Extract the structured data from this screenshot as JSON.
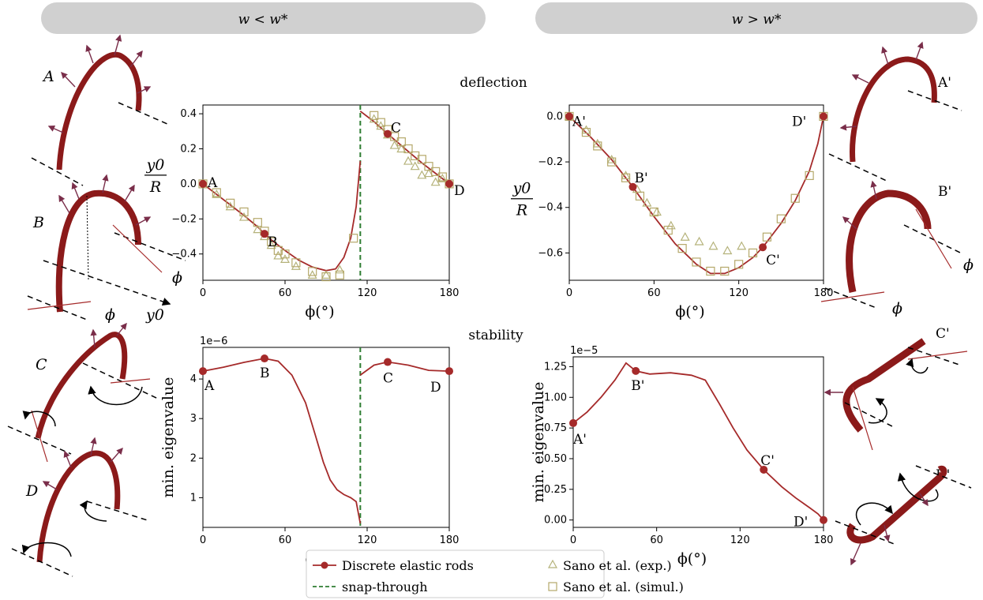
{
  "header": {
    "left_label": "w < w*",
    "right_label": "w > w*"
  },
  "section_titles": {
    "deflection": "deflection",
    "stability": "stability"
  },
  "colors": {
    "model_line": "#a52a2a",
    "snap_line": "#2e7d32",
    "exp_marker": "#b5b27a",
    "sim_marker": "#b5a86a",
    "pill": "#d0d0d0",
    "rod": "#8b1a1a"
  },
  "rod_sketches": {
    "left": [
      "A",
      "B",
      "C",
      "D"
    ],
    "right": [
      "A'",
      "B'",
      "C'",
      "D'"
    ],
    "symbols": {
      "phi": "ϕ",
      "y0": "y0"
    }
  },
  "legend": {
    "items": [
      {
        "label": "Discrete elastic rods",
        "kind": "line-dot"
      },
      {
        "label": "snap-through",
        "kind": "dash"
      },
      {
        "label": "Sano et al. (exp.)",
        "kind": "triangle"
      },
      {
        "label": "Sano et al. (simul.)",
        "kind": "square"
      }
    ]
  },
  "chart_data": [
    {
      "id": "deflection-left",
      "type": "line",
      "ylabel_num": "y0",
      "ylabel_den": "R",
      "xlabel": "ϕ(°)",
      "xlim": [
        0,
        180
      ],
      "ylim": [
        -0.55,
        0.45
      ],
      "xticks": [
        0,
        60,
        120,
        180
      ],
      "yticks": [
        0.4,
        0.2,
        0.0,
        -0.2,
        -0.4
      ],
      "yticklabels": [
        "0.4",
        "0.2",
        "0.0",
        "−0.2",
        "−0.4"
      ],
      "snap_through_x": 115,
      "series": [
        {
          "name": "Discrete elastic rods",
          "segments": [
            [
              [
                0,
                0
              ],
              [
                10,
                -0.06
              ],
              [
                20,
                -0.12
              ],
              [
                30,
                -0.18
              ],
              [
                40,
                -0.245
              ],
              [
                45,
                -0.285
              ],
              [
                50,
                -0.32
              ],
              [
                60,
                -0.38
              ],
              [
                70,
                -0.435
              ],
              [
                80,
                -0.475
              ],
              [
                90,
                -0.495
              ],
              [
                97,
                -0.485
              ],
              [
                103,
                -0.42
              ],
              [
                108,
                -0.31
              ],
              [
                112,
                -0.13
              ],
              [
                115,
                0.13
              ]
            ],
            [
              [
                115,
                0.415
              ],
              [
                125,
                0.355
              ],
              [
                135,
                0.285
              ],
              [
                150,
                0.185
              ],
              [
                160,
                0.12
              ],
              [
                170,
                0.06
              ],
              [
                180,
                0.0
              ]
            ]
          ]
        },
        {
          "name": "Sano et al. (exp.)",
          "marker": "triangle",
          "points": [
            [
              10,
              -0.06
            ],
            [
              20,
              -0.13
            ],
            [
              30,
              -0.19
            ],
            [
              40,
              -0.26
            ],
            [
              45,
              -0.3
            ],
            [
              50,
              -0.35
            ],
            [
              55,
              -0.41
            ],
            [
              60,
              -0.43
            ],
            [
              68,
              -0.47
            ],
            [
              80,
              -0.52
            ],
            [
              90,
              -0.52
            ],
            [
              100,
              -0.49
            ],
            [
              125,
              0.37
            ],
            [
              130,
              0.33
            ],
            [
              135,
              0.28
            ],
            [
              140,
              0.22
            ],
            [
              145,
              0.2
            ],
            [
              150,
              0.13
            ],
            [
              155,
              0.1
            ],
            [
              160,
              0.05
            ],
            [
              165,
              0.06
            ],
            [
              170,
              0.01
            ],
            [
              175,
              0.03
            ]
          ]
        },
        {
          "name": "Sano et al. (simul.)",
          "marker": "square",
          "points": [
            [
              0,
              0.0
            ],
            [
              10,
              -0.05
            ],
            [
              20,
              -0.11
            ],
            [
              30,
              -0.16
            ],
            [
              40,
              -0.22
            ],
            [
              45,
              -0.27
            ],
            [
              50,
              -0.33
            ],
            [
              55,
              -0.38
            ],
            [
              60,
              -0.4
            ],
            [
              68,
              -0.45
            ],
            [
              80,
              -0.5
            ],
            [
              90,
              -0.53
            ],
            [
              100,
              -0.52
            ],
            [
              110,
              -0.31
            ],
            [
              125,
              0.39
            ],
            [
              130,
              0.35
            ],
            [
              135,
              0.31
            ],
            [
              140,
              0.27
            ],
            [
              145,
              0.24
            ],
            [
              150,
              0.2
            ],
            [
              155,
              0.16
            ],
            [
              160,
              0.14
            ],
            [
              165,
              0.1
            ],
            [
              170,
              0.07
            ],
            [
              175,
              0.04
            ],
            [
              180,
              0.0
            ]
          ]
        }
      ],
      "key_points": [
        {
          "label": "A",
          "x": 0,
          "y": 0.0
        },
        {
          "label": "B",
          "x": 45,
          "y": -0.285
        },
        {
          "label": "C",
          "x": 135,
          "y": 0.285
        },
        {
          "label": "D",
          "x": 180,
          "y": 0.0
        }
      ]
    },
    {
      "id": "deflection-right",
      "type": "line",
      "ylabel_num": "y0",
      "ylabel_den": "R",
      "xlabel": "ϕ(°)",
      "xlim": [
        0,
        180
      ],
      "ylim": [
        -0.72,
        0.05
      ],
      "xticks": [
        0,
        60,
        120,
        180
      ],
      "yticks": [
        0.0,
        -0.2,
        -0.4,
        -0.6
      ],
      "yticklabels": [
        "0.0",
        "−0.2",
        "−0.4",
        "−0.6"
      ],
      "series": [
        {
          "name": "Discrete elastic rods",
          "segments": [
            [
              [
                0,
                0.0
              ],
              [
                15,
                -0.09
              ],
              [
                30,
                -0.19
              ],
              [
                45,
                -0.31
              ],
              [
                60,
                -0.44
              ],
              [
                75,
                -0.56
              ],
              [
                90,
                -0.65
              ],
              [
                100,
                -0.69
              ],
              [
                110,
                -0.69
              ],
              [
                120,
                -0.665
              ],
              [
                130,
                -0.62
              ],
              [
                137,
                -0.575
              ],
              [
                150,
                -0.47
              ],
              [
                160,
                -0.37
              ],
              [
                170,
                -0.24
              ],
              [
                176,
                -0.12
              ],
              [
                180,
                0.0
              ]
            ]
          ]
        },
        {
          "name": "Sano et al. (exp.)",
          "marker": "triangle",
          "points": [
            [
              0,
              0.0
            ],
            [
              12,
              -0.06
            ],
            [
              20,
              -0.12
            ],
            [
              30,
              -0.19
            ],
            [
              40,
              -0.26
            ],
            [
              48,
              -0.32
            ],
            [
              55,
              -0.38
            ],
            [
              62,
              -0.42
            ],
            [
              72,
              -0.48
            ],
            [
              82,
              -0.53
            ],
            [
              92,
              -0.55
            ],
            [
              102,
              -0.57
            ],
            [
              112,
              -0.59
            ],
            [
              122,
              -0.57
            ]
          ]
        },
        {
          "name": "Sano et al. (simul.)",
          "marker": "square",
          "points": [
            [
              0,
              0.0
            ],
            [
              12,
              -0.07
            ],
            [
              20,
              -0.13
            ],
            [
              30,
              -0.2
            ],
            [
              40,
              -0.27
            ],
            [
              50,
              -0.35
            ],
            [
              60,
              -0.42
            ],
            [
              70,
              -0.5
            ],
            [
              80,
              -0.58
            ],
            [
              90,
              -0.64
            ],
            [
              100,
              -0.68
            ],
            [
              110,
              -0.68
            ],
            [
              120,
              -0.65
            ],
            [
              130,
              -0.6
            ],
            [
              140,
              -0.53
            ],
            [
              150,
              -0.45
            ],
            [
              160,
              -0.36
            ],
            [
              170,
              -0.26
            ],
            [
              180,
              0.0
            ]
          ]
        }
      ],
      "key_points": [
        {
          "label": "A'",
          "x": 0,
          "y": 0.0
        },
        {
          "label": "B'",
          "x": 45,
          "y": -0.31
        },
        {
          "label": "C'",
          "x": 137,
          "y": -0.575
        },
        {
          "label": "D'",
          "x": 180,
          "y": 0.0
        }
      ]
    },
    {
      "id": "stability-left",
      "type": "line",
      "ylabel": "min. eigenvalue",
      "xlabel": "ϕ(°)",
      "scale_label": "1e−6",
      "xlim": [
        0,
        180
      ],
      "ylim": [
        0.25,
        4.8
      ],
      "xticks": [
        0,
        60,
        120,
        180
      ],
      "yticks": [
        4,
        3,
        2,
        1
      ],
      "yticklabels": [
        "4",
        "3",
        "2",
        "1"
      ],
      "snap_through_x": 115,
      "series": [
        {
          "name": "Discrete elastic rods",
          "segments": [
            [
              [
                0,
                4.2
              ],
              [
                15,
                4.3
              ],
              [
                30,
                4.42
              ],
              [
                45,
                4.52
              ],
              [
                55,
                4.45
              ],
              [
                65,
                4.1
              ],
              [
                75,
                3.4
              ],
              [
                82,
                2.6
              ],
              [
                88,
                1.9
              ],
              [
                93,
                1.45
              ],
              [
                98,
                1.2
              ],
              [
                103,
                1.08
              ],
              [
                108,
                1.0
              ],
              [
                112,
                0.9
              ],
              [
                115,
                0.35
              ]
            ],
            [
              [
                115,
                4.1
              ],
              [
                125,
                4.35
              ],
              [
                135,
                4.43
              ],
              [
                150,
                4.35
              ],
              [
                165,
                4.22
              ],
              [
                180,
                4.2
              ]
            ]
          ]
        }
      ],
      "key_points": [
        {
          "label": "A",
          "x": 0,
          "y": 4.2
        },
        {
          "label": "B",
          "x": 45,
          "y": 4.52
        },
        {
          "label": "C",
          "x": 135,
          "y": 4.43
        },
        {
          "label": "D",
          "x": 180,
          "y": 4.2
        }
      ]
    },
    {
      "id": "stability-right",
      "type": "line",
      "ylabel": "min. eigenvalue",
      "xlabel": "ϕ(°)",
      "scale_label": "1e−5",
      "xlim": [
        0,
        180
      ],
      "ylim": [
        -0.06,
        1.33
      ],
      "xticks": [
        0,
        60,
        120,
        180
      ],
      "yticks": [
        1.25,
        1.0,
        0.75,
        0.5,
        0.25,
        0.0
      ],
      "yticklabels": [
        "1.25",
        "1.00",
        "0.75",
        "0.50",
        "0.25",
        "0.00"
      ],
      "series": [
        {
          "name": "Discrete elastic rods",
          "segments": [
            [
              [
                0,
                0.79
              ],
              [
                10,
                0.88
              ],
              [
                20,
                1.0
              ],
              [
                30,
                1.14
              ],
              [
                38,
                1.28
              ],
              [
                45,
                1.215
              ],
              [
                55,
                1.19
              ],
              [
                70,
                1.2
              ],
              [
                85,
                1.18
              ],
              [
                95,
                1.14
              ],
              [
                105,
                0.95
              ],
              [
                115,
                0.75
              ],
              [
                125,
                0.57
              ],
              [
                137,
                0.41
              ],
              [
                150,
                0.27
              ],
              [
                160,
                0.18
              ],
              [
                170,
                0.1
              ],
              [
                176,
                0.05
              ],
              [
                180,
                0.0
              ]
            ]
          ]
        }
      ],
      "key_points": [
        {
          "label": "A'",
          "x": 0,
          "y": 0.79
        },
        {
          "label": "B'",
          "x": 45,
          "y": 1.215
        },
        {
          "label": "C'",
          "x": 137,
          "y": 0.41
        },
        {
          "label": "D'",
          "x": 180,
          "y": 0.0
        }
      ]
    }
  ]
}
